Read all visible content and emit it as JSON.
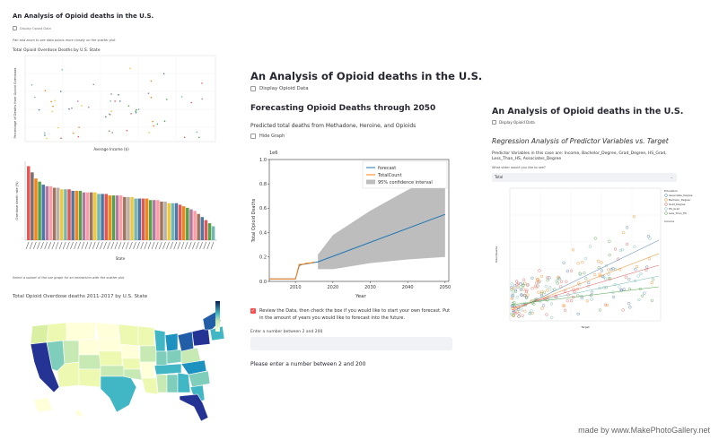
{
  "left_panel": {
    "title": "An Analysis of Opioid deaths in the U.S.",
    "checkbox_label": "Display Opioid Data",
    "note": "Pan and zoom to see data points more closely on the scatter plot",
    "scatter_title": "Total Opioid Overdose Deaths by U.S. State",
    "bar_xlabel": "State",
    "note2": "Select a subset of the bar graph for an interaction with the scatter plot",
    "map_title": "Total Opioid Overdose deaths 2011-2017 by U.S. State"
  },
  "middle_panel": {
    "title": "An Analysis of Opioid deaths in the U.S.",
    "display_checkbox": "Display Opioid Data",
    "heading": "Forecasting Opioid Deaths through 2050",
    "subheading": "Predicted total deaths from Methadone, Heroine, and Opioids",
    "hide_checkbox": "Hide Graph",
    "review_checkbox": "Review the Data, then check the box if you would like to start your own forecast. Put in the amount of years you would like to forecast into the future.",
    "input_label": "Enter a number between 2 and 200",
    "input_value": "",
    "warning": "Please enter a number between 2 and 200"
  },
  "right_panel": {
    "title": "An Analysis of Opioid deaths in the U.S.",
    "checkbox_label": "Display Opioid Data",
    "heading": "Regression Analysis of Predictor Variables vs. Target",
    "paragraph": "Predictor Variables in this case are: Income, Bachelor_Degree, Grad_Degree, HS_Grad, Less_Than_HS, Associates_Degree",
    "select_label": "What slider would you like to see?",
    "select_value": "Total",
    "legend_title": "Education",
    "legend_items": [
      "Associates_Degree",
      "Bachelor_Degree",
      "Grad_Degree",
      "HS_Grad",
      "Less_Than_HS"
    ],
    "legend_title2": "Income"
  },
  "watermark": "made by www.MakePhotoGallery.net",
  "chart_data": [
    {
      "id": "forecast",
      "type": "line",
      "ylabel": "Total Opioid Deaths",
      "xlabel": "Year",
      "y_scale_label": "1e6",
      "xlim": [
        2003,
        2051
      ],
      "ylim": [
        0,
        1.0
      ],
      "x_ticks": [
        "2010",
        "2020",
        "2030",
        "2040",
        "2050"
      ],
      "y_ticks": [
        "0.0",
        "0.2",
        "0.4",
        "0.6",
        "0.8",
        "1.0"
      ],
      "legend": [
        "forecast",
        "TotalCount",
        "95% confidence interval"
      ],
      "series": [
        {
          "name": "forecast",
          "color": "#1f77b4",
          "x": [
            2003,
            2010,
            2011,
            2012,
            2014,
            2016,
            2050
          ],
          "y": [
            0.02,
            0.02,
            0.13,
            0.14,
            0.15,
            0.16,
            0.55
          ]
        },
        {
          "name": "TotalCount",
          "color": "#ff7f0e",
          "x": [
            2003,
            2010,
            2011,
            2012,
            2013,
            2014,
            2015
          ],
          "y": [
            0.02,
            0.02,
            0.14,
            0.14,
            0.15,
            0.15,
            0.16
          ]
        }
      ],
      "confidence_band": {
        "color": "#bdbdbd",
        "x": [
          2016,
          2020,
          2030,
          2040,
          2050
        ],
        "upper": [
          0.22,
          0.38,
          0.58,
          0.75,
          0.9
        ],
        "lower": [
          0.1,
          0.1,
          0.15,
          0.18,
          0.2
        ]
      }
    },
    {
      "id": "regression",
      "type": "scatter",
      "ylabel": "Total Deaths",
      "xlabel": "Target",
      "series": [
        {
          "name": "Associates_Degree",
          "color": "#4c78a8"
        },
        {
          "name": "Bachelor_Degree",
          "color": "#f58518"
        },
        {
          "name": "Grad_Degree",
          "color": "#e45756"
        },
        {
          "name": "HS_Grad",
          "color": "#72b7b2"
        },
        {
          "name": "Less_Than_HS",
          "color": "#54a24b"
        }
      ]
    },
    {
      "id": "bars",
      "type": "bar",
      "xlabel": "State",
      "values": [
        48,
        44,
        40,
        38,
        36,
        35,
        35,
        34,
        34,
        33,
        33,
        33,
        32,
        32,
        32,
        31,
        31,
        31,
        31,
        30,
        30,
        30,
        29,
        29,
        29,
        29,
        28,
        28,
        28,
        27,
        27,
        27,
        27,
        26,
        26,
        26,
        25,
        25,
        24,
        24,
        24,
        23,
        22,
        21,
        20,
        19,
        17,
        15,
        13,
        11,
        9
      ],
      "colors": [
        "#e45756",
        "#79706e",
        "#f58518",
        "#54a24b",
        "#4c78a8",
        "#b279a2",
        "#ff9da6",
        "#9d755d",
        "#bab0ac",
        "#eeca3b",
        "#72b7b2",
        "#e45756",
        "#4c78a8",
        "#f58518",
        "#54a24b",
        "#b279a2",
        "#ff9da6",
        "#9d755d",
        "#eeca3b",
        "#72b7b2",
        "#4c78a8",
        "#e45756",
        "#f58518",
        "#54a24b",
        "#b279a2",
        "#ff9da6",
        "#9d755d",
        "#bab0ac",
        "#eeca3b",
        "#72b7b2",
        "#4c78a8",
        "#e45756",
        "#f58518",
        "#54a24b",
        "#b279a2",
        "#ff9da6",
        "#9d755d",
        "#bab0ac",
        "#eeca3b",
        "#72b7b2",
        "#4c78a8",
        "#e45756",
        "#f58518",
        "#54a24b",
        "#b279a2",
        "#ff9da6",
        "#9d755d",
        "#4c78a8",
        "#e45756",
        "#54a24b",
        "#72b7b2"
      ]
    }
  ]
}
